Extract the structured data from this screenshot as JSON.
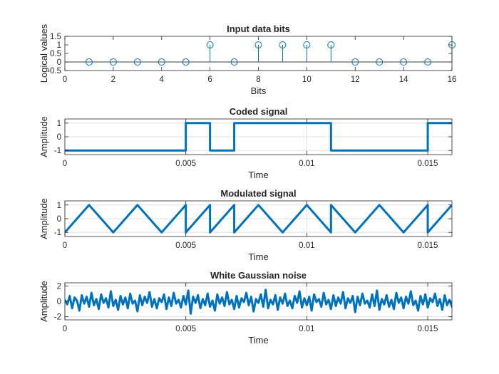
{
  "figure": {
    "background": "#ffffff",
    "line_color": "#0072bd",
    "axis_color": "#262626",
    "grid_color": "#dfdfdf"
  },
  "chart_data": [
    {
      "type": "stem",
      "title": "Input data bits",
      "xlabel": "Bits",
      "ylabel": "Logical values",
      "xlim": [
        0,
        16
      ],
      "ylim": [
        -0.5,
        1.5
      ],
      "xticks": [
        0,
        2,
        4,
        6,
        8,
        10,
        12,
        14,
        16
      ],
      "xtick_labels": [
        "0",
        "2",
        "4",
        "6",
        "8",
        "10",
        "12",
        "14",
        "16"
      ],
      "yticks": [
        -0.5,
        0,
        0.5,
        1,
        1.5
      ],
      "ytick_labels": [
        "-0.5",
        "0",
        "0.5",
        "1",
        "1.5"
      ],
      "grid": false,
      "x": [
        1,
        2,
        3,
        4,
        5,
        6,
        7,
        8,
        9,
        10,
        11,
        12,
        13,
        14,
        15,
        16
      ],
      "y": [
        0,
        0,
        0,
        0,
        0,
        1,
        0,
        1,
        1,
        1,
        1,
        0,
        0,
        0,
        0,
        1
      ]
    },
    {
      "type": "line",
      "title": "Coded signal",
      "xlabel": "Time",
      "ylabel": "Amplitude",
      "xlim": [
        0,
        0.016
      ],
      "ylim": [
        -1.3,
        1.3
      ],
      "xticks": [
        0,
        0.005,
        0.01,
        0.015
      ],
      "xtick_labels": [
        "0",
        "0.005",
        "0.01",
        "0.015"
      ],
      "yticks": [
        -1,
        0,
        1
      ],
      "ytick_labels": [
        "-1",
        "0",
        "1"
      ],
      "grid": true,
      "x": [
        0,
        0.005,
        0.005,
        0.006,
        0.006,
        0.007,
        0.007,
        0.011,
        0.011,
        0.015,
        0.015,
        0.016
      ],
      "y": [
        -1,
        -1,
        1,
        1,
        -1,
        -1,
        1,
        1,
        -1,
        -1,
        1,
        1
      ]
    },
    {
      "type": "line",
      "title": "Modulated signal",
      "xlabel": "Time",
      "ylabel": "Amplitude",
      "xlim": [
        0,
        0.016
      ],
      "ylim": [
        -1.3,
        1.3
      ],
      "xticks": [
        0,
        0.005,
        0.01,
        0.015
      ],
      "xtick_labels": [
        "0",
        "0.005",
        "0.01",
        "0.015"
      ],
      "yticks": [
        -1,
        0,
        1
      ],
      "ytick_labels": [
        "-1",
        "0",
        "1"
      ],
      "grid": true,
      "x": [
        0,
        0.0005,
        0.001,
        0.0015,
        0.002,
        0.0025,
        0.003,
        0.0035,
        0.004,
        0.0045,
        0.005,
        0.005,
        0.0055,
        0.006,
        0.006,
        0.0065,
        0.007,
        0.007,
        0.0075,
        0.008,
        0.0085,
        0.009,
        0.0095,
        0.01,
        0.0105,
        0.011,
        0.011,
        0.0115,
        0.012,
        0.0125,
        0.013,
        0.0135,
        0.014,
        0.0145,
        0.015,
        0.015,
        0.0155,
        0.016
      ],
      "y": [
        -1,
        0,
        1,
        0,
        -1,
        0,
        1,
        0,
        -1,
        0,
        1,
        -1,
        0,
        1,
        -1,
        0,
        1,
        -1,
        0,
        1,
        0,
        -1,
        0,
        1,
        0,
        -1,
        1,
        0,
        -1,
        0,
        1,
        0,
        -1,
        0,
        1,
        -1,
        0,
        1
      ]
    },
    {
      "type": "line",
      "title": "White Gaussian noise",
      "xlabel": "Time",
      "ylabel": "Amplitude",
      "xlim": [
        0,
        0.016
      ],
      "ylim": [
        -2.4,
        2.4
      ],
      "xticks": [
        0,
        0.005,
        0.01,
        0.015
      ],
      "xtick_labels": [
        "0",
        "0.005",
        "0.01",
        "0.015"
      ],
      "yticks": [
        -2,
        0,
        2
      ],
      "ytick_labels": [
        "-2",
        "0",
        "2"
      ],
      "grid": true,
      "x0": 0,
      "dx": 0.0001,
      "y": [
        0.2,
        -0.4,
        0.7,
        -0.9,
        0.5,
        0.1,
        -1.2,
        0.8,
        -0.3,
        0.6,
        -0.7,
        1.1,
        -0.5,
        0.3,
        -1.0,
        0.9,
        -0.2,
        0.4,
        -0.8,
        1.3,
        -0.6,
        0.2,
        -1.1,
        0.7,
        -0.4,
        0.5,
        -0.9,
        1.0,
        -0.3,
        0.1,
        -1.3,
        0.8,
        -0.5,
        0.6,
        -0.2,
        1.2,
        -0.7,
        0.3,
        -0.9,
        0.4,
        -0.1,
        0.9,
        -1.0,
        0.5,
        -0.6,
        1.1,
        -0.3,
        0.2,
        -0.8,
        0.7,
        -0.4,
        1.4,
        -1.6,
        0.6,
        -0.2,
        0.8,
        -0.9,
        0.3,
        -0.5,
        1.0,
        -0.7,
        0.1,
        -1.2,
        0.9,
        -0.3,
        0.5,
        -0.6,
        1.2,
        -0.4,
        0.2,
        -1.0,
        0.7,
        -0.8,
        0.4,
        -0.1,
        1.1,
        -0.5,
        0.6,
        -1.3,
        0.3,
        -0.2,
        0.9,
        -0.7,
        1.5,
        -0.9,
        0.2,
        -0.4,
        0.8,
        -1.1,
        0.5,
        -0.3,
        1.0,
        -0.6,
        0.1,
        -0.9,
        0.7,
        -0.2,
        1.3,
        -0.8,
        0.4,
        -0.5,
        0.6,
        -1.2,
        0.9,
        -0.1,
        0.3,
        -0.7,
        1.1,
        -0.4,
        0.2,
        -1.0,
        0.8,
        -0.6,
        0.5,
        -0.3,
        1.2,
        -0.9,
        0.4,
        -0.2,
        0.7,
        -1.4,
        0.6,
        -0.5,
        1.0,
        -0.3,
        0.1,
        -0.8,
        0.9,
        -0.6,
        1.4,
        -1.1,
        0.3,
        -0.4,
        0.8,
        -0.7,
        0.2,
        -1.0,
        1.1,
        -0.2,
        0.5,
        -0.9,
        0.6,
        -0.3,
        1.3,
        -0.5,
        0.1,
        -1.2,
        0.7,
        -0.4,
        0.9,
        -0.8,
        0.4,
        -0.1,
        1.0,
        -0.6,
        0.3,
        -1.1,
        0.8,
        -0.5,
        0.2,
        -0.7,
        1.2,
        -0.3,
        0.6,
        -1.0,
        0.5,
        -0.2,
        0.9,
        -0.9,
        0.4,
        -0.6,
        1.1,
        -0.4,
        0.7,
        -1.3,
        0.2,
        -0.1,
        0.8,
        -0.8,
        1.0,
        -0.5,
        0.3,
        -0.9,
        0.6,
        -0.2,
        1.2,
        -0.7,
        0.4,
        -1.1,
        0.9,
        -0.3,
        0.5,
        -0.6,
        1.0,
        -0.4,
        0.1,
        -1.2,
        0.7,
        -0.5,
        0.3,
        -0.8,
        1.3,
        -0.2,
        0.6,
        -1.0,
        0.4,
        -0.7,
        0.9,
        -0.1,
        0.5,
        -1.4,
        0.8,
        -0.3,
        0.2,
        -0.9,
        1.1,
        -0.6,
        0.4,
        -0.2,
        0.7,
        -1.0,
        0.6,
        -0.4,
        1.2,
        -0.8,
        0.3,
        -0.5,
        0.9,
        -1.1,
        0.2,
        -0.3,
        1.0,
        -0.7,
        0.5,
        -0.1,
        0.8,
        -1.2,
        0.4,
        -0.6,
        1.1,
        -0.4,
        0.7,
        -0.9,
        0.3,
        -0.2,
        1.3,
        -0.8,
        0.6,
        -1.0,
        0.5,
        -0.3,
        0.9,
        -0.5,
        0.1,
        -1.6,
        0.8,
        -0.4,
        0.2,
        -0.7,
        1.2,
        -0.6,
        0.4,
        -0.9,
        0.7,
        -0.2,
        1.0,
        -1.1,
        0.3,
        -0.5,
        0.6,
        -0.8,
        1.1,
        -0.3,
        0.5,
        -1.0,
        0.9,
        -0.4,
        0.2,
        -0.6,
        1.4,
        -0.7,
        0.3,
        -1.2,
        0.8,
        -0.1,
        0.5,
        -0.9,
        0.6,
        -0.5,
        1.0,
        -0.3,
        0.7,
        -1.1,
        0.4,
        -0.2,
        0.9,
        -0.8,
        1.2,
        -0.4,
        0.1,
        -1.0,
        0.6,
        -0.6,
        1.1,
        -0.3,
        0.8,
        -1.3,
        0.5,
        -0.2,
        0.3,
        -0.7,
        1.0,
        -0.5,
        0.6,
        -0.9,
        0.2,
        -0.1,
        1.5,
        -0.8,
        0.4,
        -1.1,
        0.7,
        -0.4,
        0.9,
        -0.6,
        1.3,
        -0.9,
        0.8,
        -0.3,
        0.5,
        -1.2,
        0.6,
        -0.5,
        1.7,
        -0.4,
        0.3,
        -0.7,
        1.1,
        -0.2,
        0.4
      ]
    }
  ]
}
